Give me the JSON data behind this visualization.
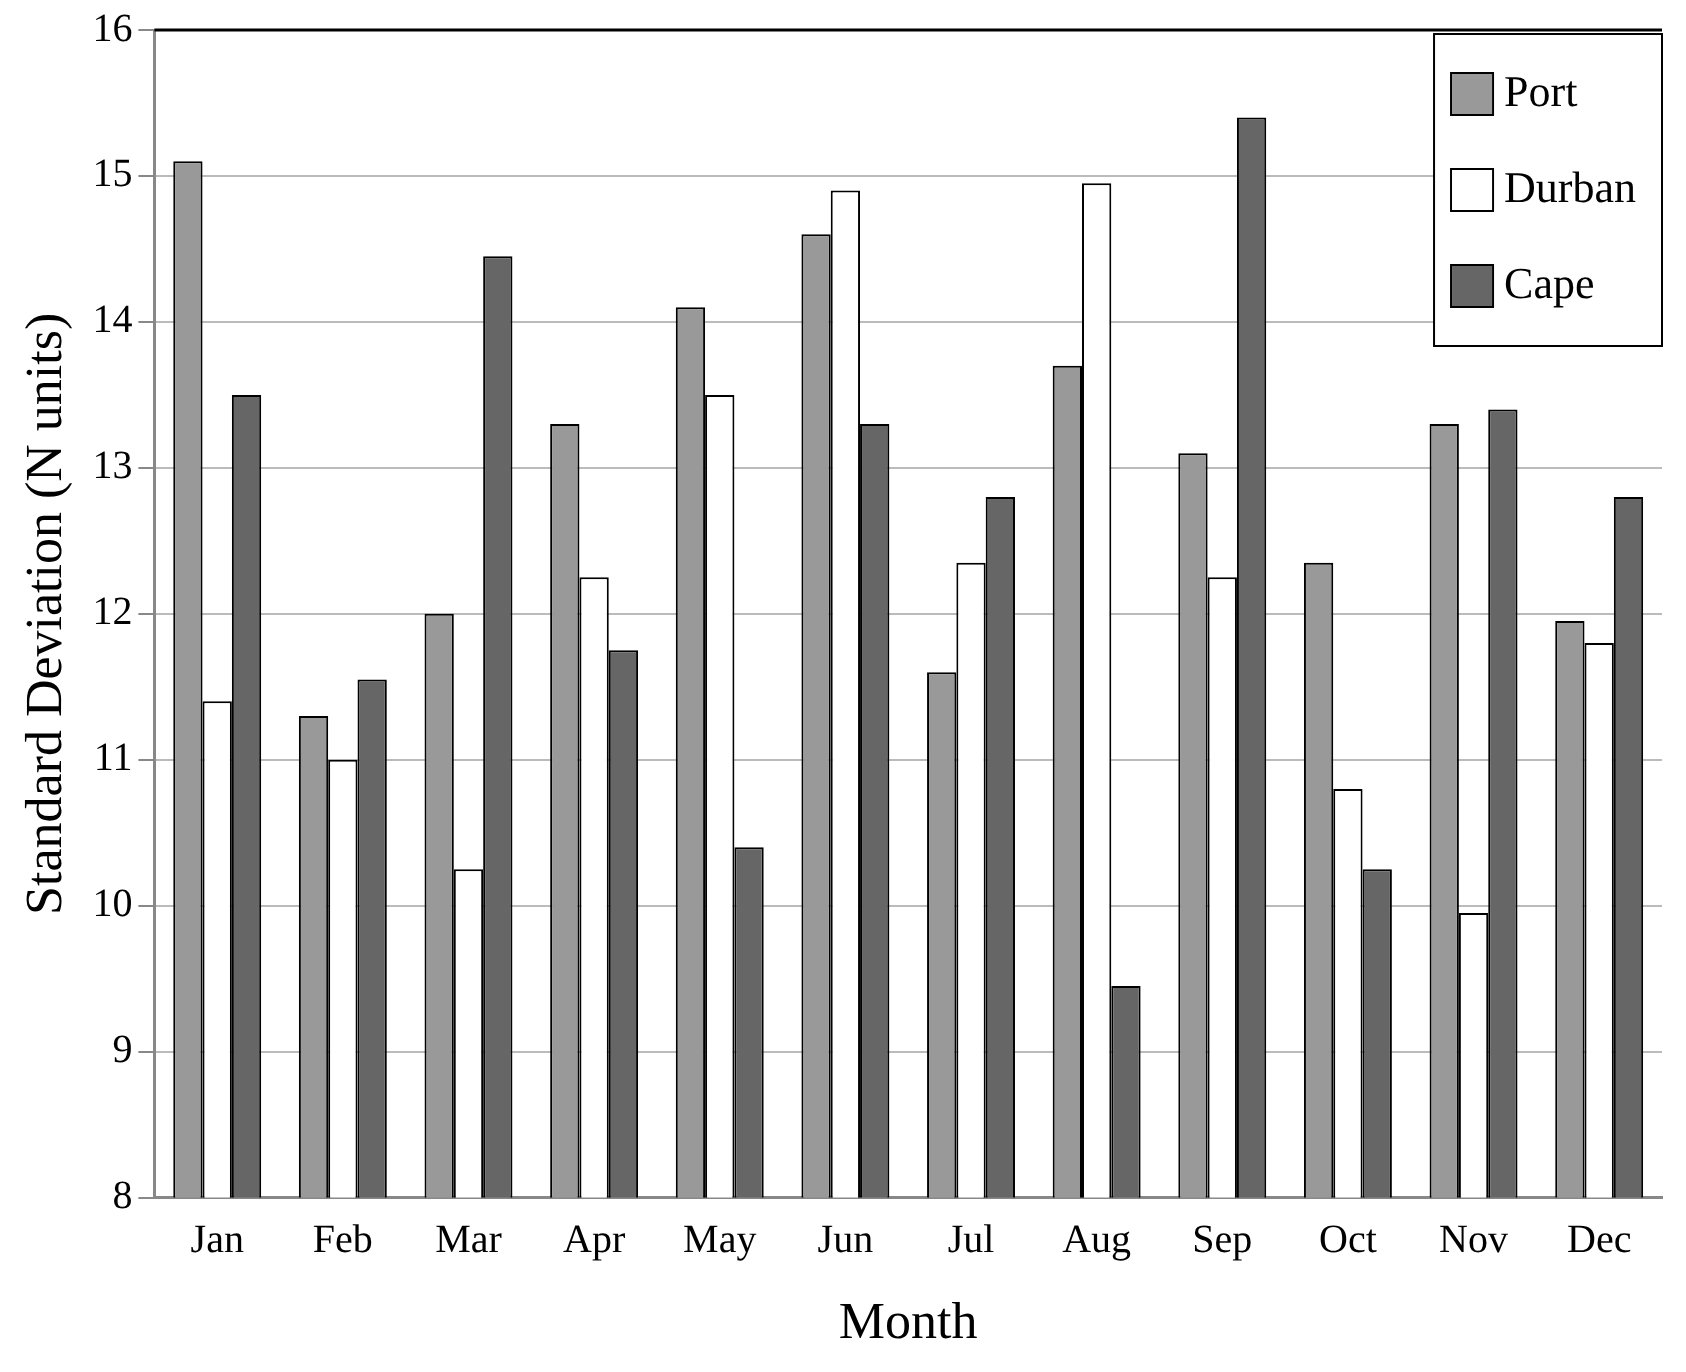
{
  "chart_data": {
    "type": "bar",
    "xlabel": "Month",
    "ylabel": "Standard Deviation (N units)",
    "categories": [
      "Jan",
      "Feb",
      "Mar",
      "Apr",
      "May",
      "Jun",
      "Jul",
      "Aug",
      "Sep",
      "Oct",
      "Nov",
      "Dec"
    ],
    "series": [
      {
        "name": "Port",
        "color": "#999999",
        "values": [
          15.1,
          11.3,
          12.0,
          13.3,
          14.1,
          14.6,
          11.6,
          13.7,
          13.1,
          12.35,
          13.3,
          11.95
        ]
      },
      {
        "name": "Durban",
        "color": "#ffffff",
        "values": [
          11.4,
          11.0,
          10.25,
          12.25,
          13.5,
          14.9,
          12.35,
          14.95,
          12.25,
          10.8,
          9.95,
          11.8
        ]
      },
      {
        "name": "Cape",
        "color": "#666666",
        "values": [
          13.5,
          11.55,
          14.45,
          11.75,
          10.4,
          13.3,
          12.8,
          9.45,
          15.4,
          10.25,
          13.4,
          12.8
        ]
      }
    ],
    "ylim": [
      8,
      16
    ],
    "yticks": [
      8,
      9,
      10,
      11,
      12,
      13,
      14,
      15,
      16
    ],
    "grid": "y",
    "legend": "top right"
  }
}
